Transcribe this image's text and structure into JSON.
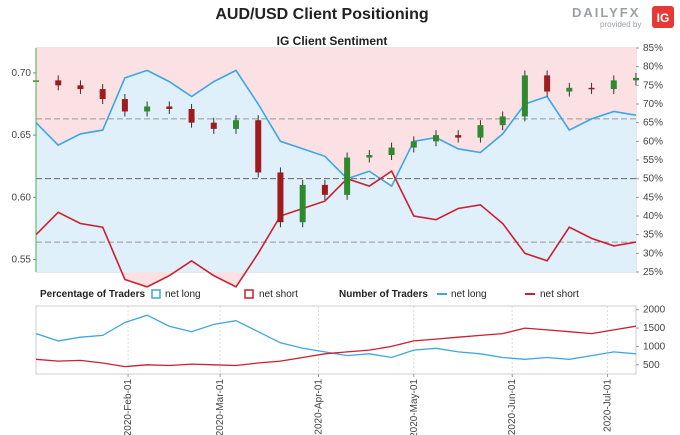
{
  "title": "AUD/USD Client Positioning",
  "subtitle": "IG Client Sentiment",
  "logo": {
    "word": "DAILYFX",
    "tag": "provided by",
    "badge": "IG"
  },
  "colors": {
    "long": "#3ea6e2",
    "short": "#cc1f2f",
    "long_fill": "#dff0fa",
    "short_fill": "#fbe1e3",
    "candle_up": "#2f8a2f",
    "candle_down": "#a01c1c",
    "axis_green": "#4caf50"
  },
  "chart_data": [
    {
      "type": "area",
      "name": "sentiment",
      "ylabel_left_ticks": [
        "0.55",
        "0.60",
        "0.65",
        "0.70"
      ],
      "ylabel_right_ticks": [
        "25%",
        "30%",
        "35%",
        "40%",
        "45%",
        "50%",
        "55%",
        "60%",
        "65%",
        "70%",
        "75%",
        "80%",
        "85%"
      ],
      "ylim_price": [
        0.54,
        0.72
      ],
      "ylim_percent": [
        25,
        85
      ],
      "reference_lines_percent": [
        33,
        50,
        66
      ],
      "x_start": "2020-01-03",
      "x_end": "2020-07-10",
      "percentage_series": [
        {
          "name": "net long",
          "role": "long",
          "x": [
            "2020-01-03",
            "2020-01-10",
            "2020-01-17",
            "2020-01-24",
            "2020-01-31",
            "2020-02-07",
            "2020-02-14",
            "2020-02-21",
            "2020-02-28",
            "2020-03-06",
            "2020-03-13",
            "2020-03-20",
            "2020-03-27",
            "2020-04-03",
            "2020-04-10",
            "2020-04-17",
            "2020-04-24",
            "2020-05-01",
            "2020-05-08",
            "2020-05-15",
            "2020-05-22",
            "2020-05-29",
            "2020-06-05",
            "2020-06-12",
            "2020-06-19",
            "2020-06-26",
            "2020-07-03",
            "2020-07-10"
          ],
          "values": [
            65,
            59,
            62,
            63,
            77,
            79,
            76,
            72,
            76,
            79,
            70,
            60,
            58,
            56,
            50,
            52,
            48,
            60,
            61,
            58,
            57,
            62,
            70,
            72,
            63,
            66,
            68,
            67
          ]
        },
        {
          "name": "net short",
          "role": "short",
          "x": [
            "2020-01-03",
            "2020-01-10",
            "2020-01-17",
            "2020-01-24",
            "2020-01-31",
            "2020-02-07",
            "2020-02-14",
            "2020-02-21",
            "2020-02-28",
            "2020-03-06",
            "2020-03-13",
            "2020-03-20",
            "2020-03-27",
            "2020-04-03",
            "2020-04-10",
            "2020-04-17",
            "2020-04-24",
            "2020-05-01",
            "2020-05-08",
            "2020-05-15",
            "2020-05-22",
            "2020-05-29",
            "2020-06-05",
            "2020-06-12",
            "2020-06-19",
            "2020-06-26",
            "2020-07-03",
            "2020-07-10"
          ],
          "values": [
            35,
            41,
            38,
            37,
            23,
            21,
            24,
            28,
            24,
            21,
            30,
            40,
            42,
            44,
            50,
            48,
            52,
            40,
            39,
            42,
            43,
            38,
            30,
            28,
            37,
            34,
            32,
            33
          ]
        }
      ],
      "price_candles": {
        "x": [
          "2020-01-03",
          "2020-01-10",
          "2020-01-17",
          "2020-01-24",
          "2020-01-31",
          "2020-02-07",
          "2020-02-14",
          "2020-02-21",
          "2020-02-28",
          "2020-03-06",
          "2020-03-13",
          "2020-03-20",
          "2020-03-27",
          "2020-04-03",
          "2020-04-10",
          "2020-04-17",
          "2020-04-24",
          "2020-05-01",
          "2020-05-08",
          "2020-05-15",
          "2020-05-22",
          "2020-05-29",
          "2020-06-05",
          "2020-06-12",
          "2020-06-19",
          "2020-06-26",
          "2020-07-03",
          "2020-07-10"
        ],
        "close": [
          0.694,
          0.69,
          0.687,
          0.679,
          0.669,
          0.673,
          0.671,
          0.66,
          0.655,
          0.662,
          0.62,
          0.58,
          0.61,
          0.602,
          0.632,
          0.634,
          0.64,
          0.645,
          0.65,
          0.648,
          0.658,
          0.665,
          0.698,
          0.685,
          0.688,
          0.687,
          0.694,
          0.696
        ]
      }
    },
    {
      "type": "line",
      "name": "traders",
      "legend_left_title": "Percentage of Traders",
      "legend_right_title": "Number of Traders",
      "ylabel_right_ticks": [
        "500",
        "1000",
        "1500",
        "2000"
      ],
      "ylim": [
        250,
        2100
      ],
      "x_ticks": [
        "2020-Feb-01",
        "2020-Mar-01",
        "2020-Apr-01",
        "2020-May-01",
        "2020-Jun-01",
        "2020-Jul-01"
      ],
      "series": [
        {
          "name": "net long",
          "role": "long",
          "x": [
            "2020-01-03",
            "2020-01-10",
            "2020-01-17",
            "2020-01-24",
            "2020-01-31",
            "2020-02-07",
            "2020-02-14",
            "2020-02-21",
            "2020-02-28",
            "2020-03-06",
            "2020-03-13",
            "2020-03-20",
            "2020-03-27",
            "2020-04-03",
            "2020-04-10",
            "2020-04-17",
            "2020-04-24",
            "2020-05-01",
            "2020-05-08",
            "2020-05-15",
            "2020-05-22",
            "2020-05-29",
            "2020-06-05",
            "2020-06-12",
            "2020-06-19",
            "2020-06-26",
            "2020-07-03",
            "2020-07-10"
          ],
          "values": [
            1350,
            1150,
            1250,
            1300,
            1650,
            1850,
            1550,
            1400,
            1600,
            1700,
            1400,
            1100,
            950,
            850,
            750,
            800,
            700,
            900,
            950,
            850,
            800,
            700,
            650,
            700,
            650,
            750,
            850,
            800
          ]
        },
        {
          "name": "net short",
          "role": "short",
          "x": [
            "2020-01-03",
            "2020-01-10",
            "2020-01-17",
            "2020-01-24",
            "2020-01-31",
            "2020-02-07",
            "2020-02-14",
            "2020-02-21",
            "2020-02-28",
            "2020-03-06",
            "2020-03-13",
            "2020-03-20",
            "2020-03-27",
            "2020-04-03",
            "2020-04-10",
            "2020-04-17",
            "2020-04-24",
            "2020-05-01",
            "2020-05-08",
            "2020-05-15",
            "2020-05-22",
            "2020-05-29",
            "2020-06-05",
            "2020-06-12",
            "2020-06-19",
            "2020-06-26",
            "2020-07-03",
            "2020-07-10"
          ],
          "values": [
            650,
            600,
            620,
            550,
            450,
            500,
            480,
            520,
            500,
            480,
            550,
            600,
            700,
            800,
            850,
            900,
            1000,
            1150,
            1200,
            1250,
            1300,
            1350,
            1500,
            1450,
            1400,
            1350,
            1450,
            1550
          ]
        }
      ]
    }
  ]
}
